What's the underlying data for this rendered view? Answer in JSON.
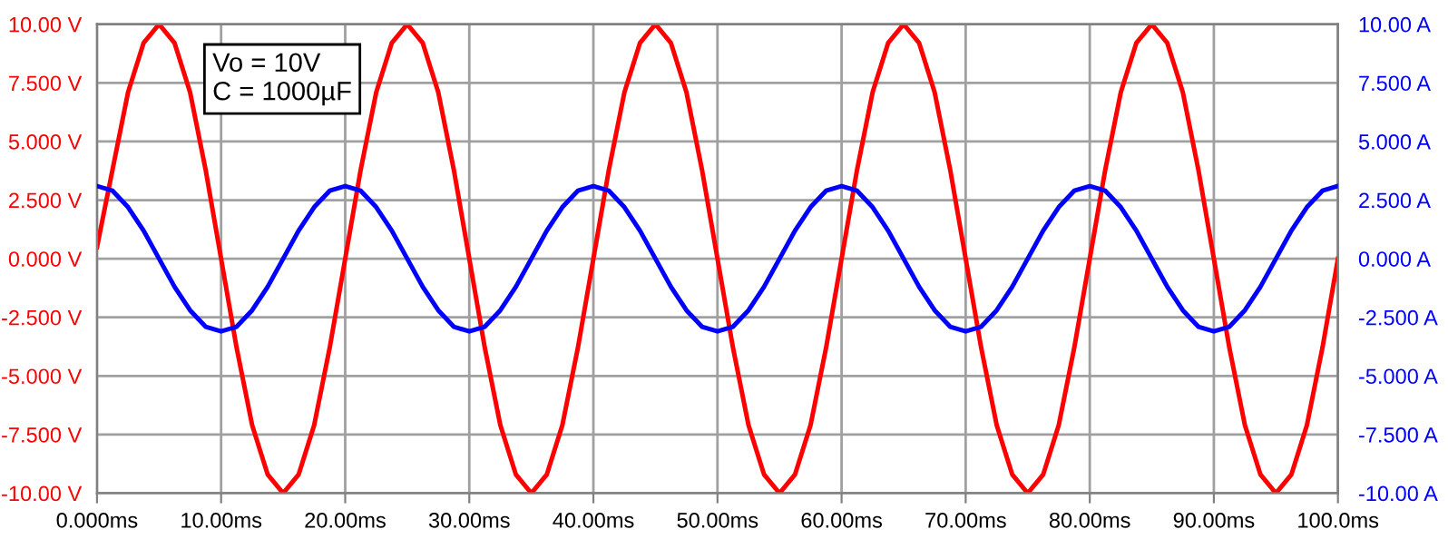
{
  "chart_data": {
    "type": "line",
    "annotations": [
      "Vo = 10V\nC = 1000µF"
    ],
    "x": [
      0,
      1.25,
      2.5,
      3.75,
      5,
      6.25,
      7.5,
      8.75,
      10,
      11.25,
      12.5,
      13.75,
      15,
      16.25,
      17.5,
      18.75,
      20,
      21.25,
      22.5,
      23.75,
      25,
      26.25,
      27.5,
      28.75,
      30,
      31.25,
      32.5,
      33.75,
      35,
      36.25,
      37.5,
      38.75,
      40,
      41.25,
      42.5,
      43.75,
      45,
      46.25,
      47.5,
      48.75,
      50,
      51.25,
      52.5,
      53.75,
      55,
      56.25,
      57.5,
      58.75,
      60,
      61.25,
      62.5,
      63.75,
      65,
      66.25,
      67.5,
      68.75,
      70,
      71.25,
      72.5,
      73.75,
      75,
      76.25,
      77.5,
      78.75,
      80,
      81.25,
      82.5,
      83.75,
      85,
      86.25,
      87.5,
      88.75,
      90,
      91.25,
      92.5,
      93.75,
      95,
      96.25,
      97.5,
      98.75,
      100
    ],
    "series": [
      {
        "color": "#ff0000",
        "values": [
          0.5,
          3.8,
          7.1,
          9.2,
          10,
          9.2,
          7.1,
          3.8,
          0,
          -3.8,
          -7.1,
          -9.2,
          -10,
          -9.2,
          -7.1,
          -3.8,
          0,
          3.8,
          7.1,
          9.2,
          10,
          9.2,
          7.1,
          3.8,
          0,
          -3.8,
          -7.1,
          -9.2,
          -10,
          -9.2,
          -7.1,
          -3.8,
          0,
          3.8,
          7.1,
          9.2,
          10,
          9.2,
          7.1,
          3.8,
          0,
          -3.8,
          -7.1,
          -9.2,
          -10,
          -9.2,
          -7.1,
          -3.8,
          0,
          3.8,
          7.1,
          9.2,
          10,
          9.2,
          7.1,
          3.8,
          0,
          -3.8,
          -7.1,
          -9.2,
          -10,
          -9.2,
          -7.1,
          -3.8,
          0,
          3.8,
          7.1,
          9.2,
          10,
          9.2,
          7.1,
          3.8,
          0,
          -3.8,
          -7.1,
          -9.2,
          -10,
          -9.2,
          -7.1,
          -3.8,
          0
        ]
      },
      {
        "color": "#0000ff",
        "axis": "y2",
        "values": [
          3.1,
          2.9,
          2.2,
          1.2,
          0,
          -1.2,
          -2.2,
          -2.9,
          -3.1,
          -2.9,
          -2.2,
          -1.2,
          0,
          1.2,
          2.2,
          2.9,
          3.1,
          2.9,
          2.2,
          1.2,
          0,
          -1.2,
          -2.2,
          -2.9,
          -3.1,
          -2.9,
          -2.2,
          -1.2,
          0,
          1.2,
          2.2,
          2.9,
          3.1,
          2.9,
          2.2,
          1.2,
          0,
          -1.2,
          -2.2,
          -2.9,
          -3.1,
          -2.9,
          -2.2,
          -1.2,
          0,
          1.2,
          2.2,
          2.9,
          3.1,
          2.9,
          2.2,
          1.2,
          0,
          -1.2,
          -2.2,
          -2.9,
          -3.1,
          -2.9,
          -2.2,
          -1.2,
          0,
          1.2,
          2.2,
          2.9,
          3.1,
          2.9,
          2.2,
          1.2,
          0,
          -1.2,
          -2.2,
          -2.9,
          -3.1,
          -2.9,
          -2.2,
          -1.2,
          0,
          1.2,
          2.2,
          2.9,
          3.1
        ]
      }
    ],
    "xlim": [
      0,
      100
    ],
    "xticks": [
      {
        "value": 0,
        "label": "0.000ms"
      },
      {
        "value": 10,
        "label": "10.00ms"
      },
      {
        "value": 20,
        "label": "20.00ms"
      },
      {
        "value": 30,
        "label": "30.00ms"
      },
      {
        "value": 40,
        "label": "40.00ms"
      },
      {
        "value": 50,
        "label": "50.00ms"
      },
      {
        "value": 60,
        "label": "60.00ms"
      },
      {
        "value": 70,
        "label": "70.00ms"
      },
      {
        "value": 80,
        "label": "80.00ms"
      },
      {
        "value": 90,
        "label": "90.00ms"
      },
      {
        "value": 100,
        "label": "100.0ms"
      }
    ],
    "ylim": [
      -10,
      10
    ],
    "yticks": [
      {
        "value": -10,
        "label": "-10.00 V"
      },
      {
        "value": -7.5,
        "label": "-7.500 V"
      },
      {
        "value": -5,
        "label": "-5.000 V"
      },
      {
        "value": -2.5,
        "label": "-2.500 V"
      },
      {
        "value": 0,
        "label": "0.000 V"
      },
      {
        "value": 2.5,
        "label": "2.500 V"
      },
      {
        "value": 5,
        "label": "5.000 V"
      },
      {
        "value": 7.5,
        "label": "7.500 V"
      },
      {
        "value": 10,
        "label": "10.00 V"
      }
    ],
    "y2lim": [
      -10,
      10
    ],
    "y2ticks": [
      {
        "value": -10,
        "label": "-10.00 A"
      },
      {
        "value": -7.5,
        "label": "-7.500 A"
      },
      {
        "value": -5,
        "label": "-5.000 A"
      },
      {
        "value": -2.5,
        "label": "-2.500 A"
      },
      {
        "value": 0,
        "label": "0.000 A"
      },
      {
        "value": 2.5,
        "label": "2.500 A"
      },
      {
        "value": 5,
        "label": "5.000 A"
      },
      {
        "value": 7.5,
        "label": "7.500 A"
      },
      {
        "value": 10,
        "label": "10.00 A"
      }
    ],
    "grid": true,
    "line_style": "solid"
  }
}
